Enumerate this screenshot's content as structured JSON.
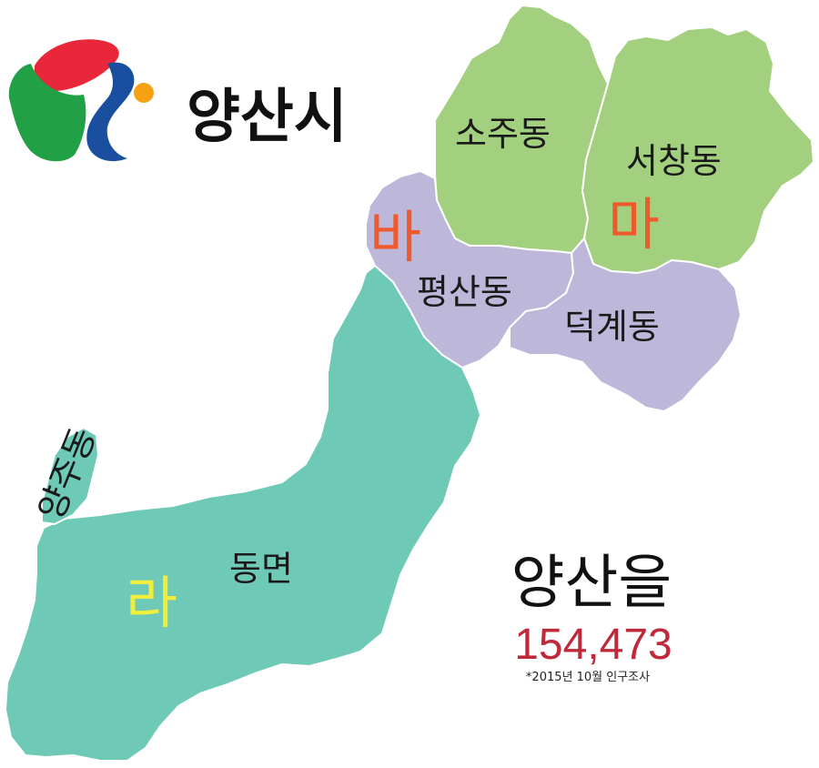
{
  "header": {
    "city_name": "양산시"
  },
  "colors": {
    "district_ma": "#a2d07e",
    "district_ba": "#bdb8da",
    "district_ra": "#6ec9b6",
    "letter_ma_ba": "#ee5a2c",
    "letter_ra": "#f0ee3c",
    "population": "#c0293a",
    "logo_red": "#e8283a",
    "logo_green": "#22a046",
    "logo_blue": "#1a4fa0",
    "logo_orange": "#f5a113"
  },
  "map": {
    "districts": [
      {
        "letter": "마",
        "dongs": [
          "소주동",
          "서창동"
        ]
      },
      {
        "letter": "바",
        "dongs": [
          "평산동",
          "덕계동"
        ]
      },
      {
        "letter": "라",
        "dongs": [
          "동면",
          "양주동"
        ]
      }
    ]
  },
  "summary": {
    "constituency": "양산을",
    "population": "154,473",
    "footnote": "*2015년 10월 인구조사"
  }
}
